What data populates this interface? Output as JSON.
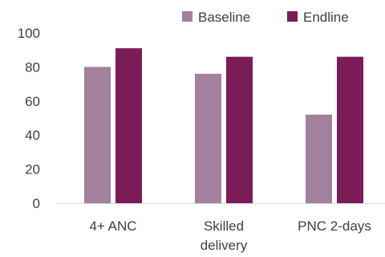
{
  "chart_data": {
    "type": "bar",
    "title": "",
    "xlabel": "",
    "ylabel": "",
    "categories": [
      [
        "4+ ANC"
      ],
      [
        "Skilled",
        "delivery"
      ],
      [
        "PNC 2-days"
      ]
    ],
    "series": [
      {
        "name": "Baseline",
        "color": "#a2819d",
        "values": [
          80,
          76,
          52
        ]
      },
      {
        "name": "Endline",
        "color": "#7b1c57",
        "values": [
          91,
          86,
          86
        ]
      }
    ],
    "ylim": [
      0,
      100
    ],
    "yticks": [
      0,
      20,
      40,
      60,
      80,
      100
    ],
    "grid": false,
    "legend": "top-right"
  }
}
